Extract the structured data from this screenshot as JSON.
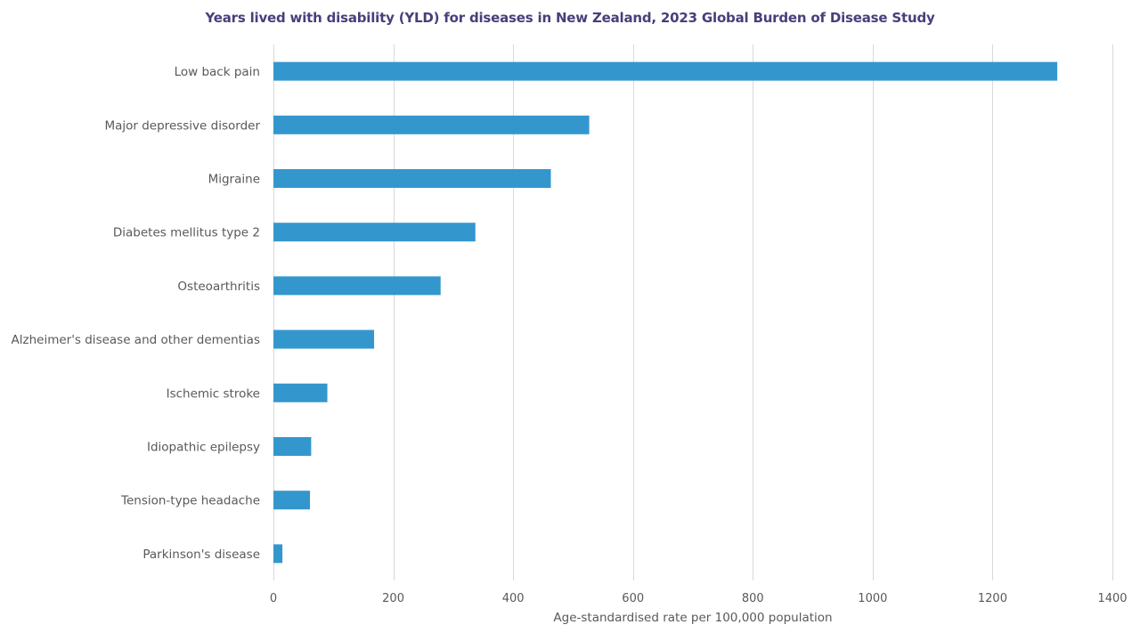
{
  "chart_data": {
    "type": "bar",
    "orientation": "horizontal",
    "title": "Years lived with disability (YLD) for diseases in New Zealand, 2023 Global Burden of Disease Study",
    "xlabel": "Age-standardised rate per 100,000 population",
    "ylabel": "",
    "categories": [
      "Low back pain",
      "Major depressive disorder",
      "Migraine",
      "Diabetes mellitus type 2",
      "Osteoarthritis",
      "Alzheimer's disease and other dementias",
      "Ischemic stroke",
      "Idiopathic epilepsy",
      "Tension-type headache",
      "Parkinson's disease"
    ],
    "values": [
      1308,
      527,
      463,
      337,
      279,
      168,
      90,
      63,
      61,
      15
    ],
    "xlim": [
      0,
      1400
    ],
    "xticks": [
      0,
      200,
      400,
      600,
      800,
      1000,
      1200,
      1400
    ],
    "xtick_labels": [
      "0",
      "200",
      "400",
      "600",
      "800",
      "1000",
      "1200",
      "1400"
    ],
    "grid": "vertical",
    "legend": "none",
    "bar_color": "#3397cd",
    "title_color": "#46407a"
  }
}
